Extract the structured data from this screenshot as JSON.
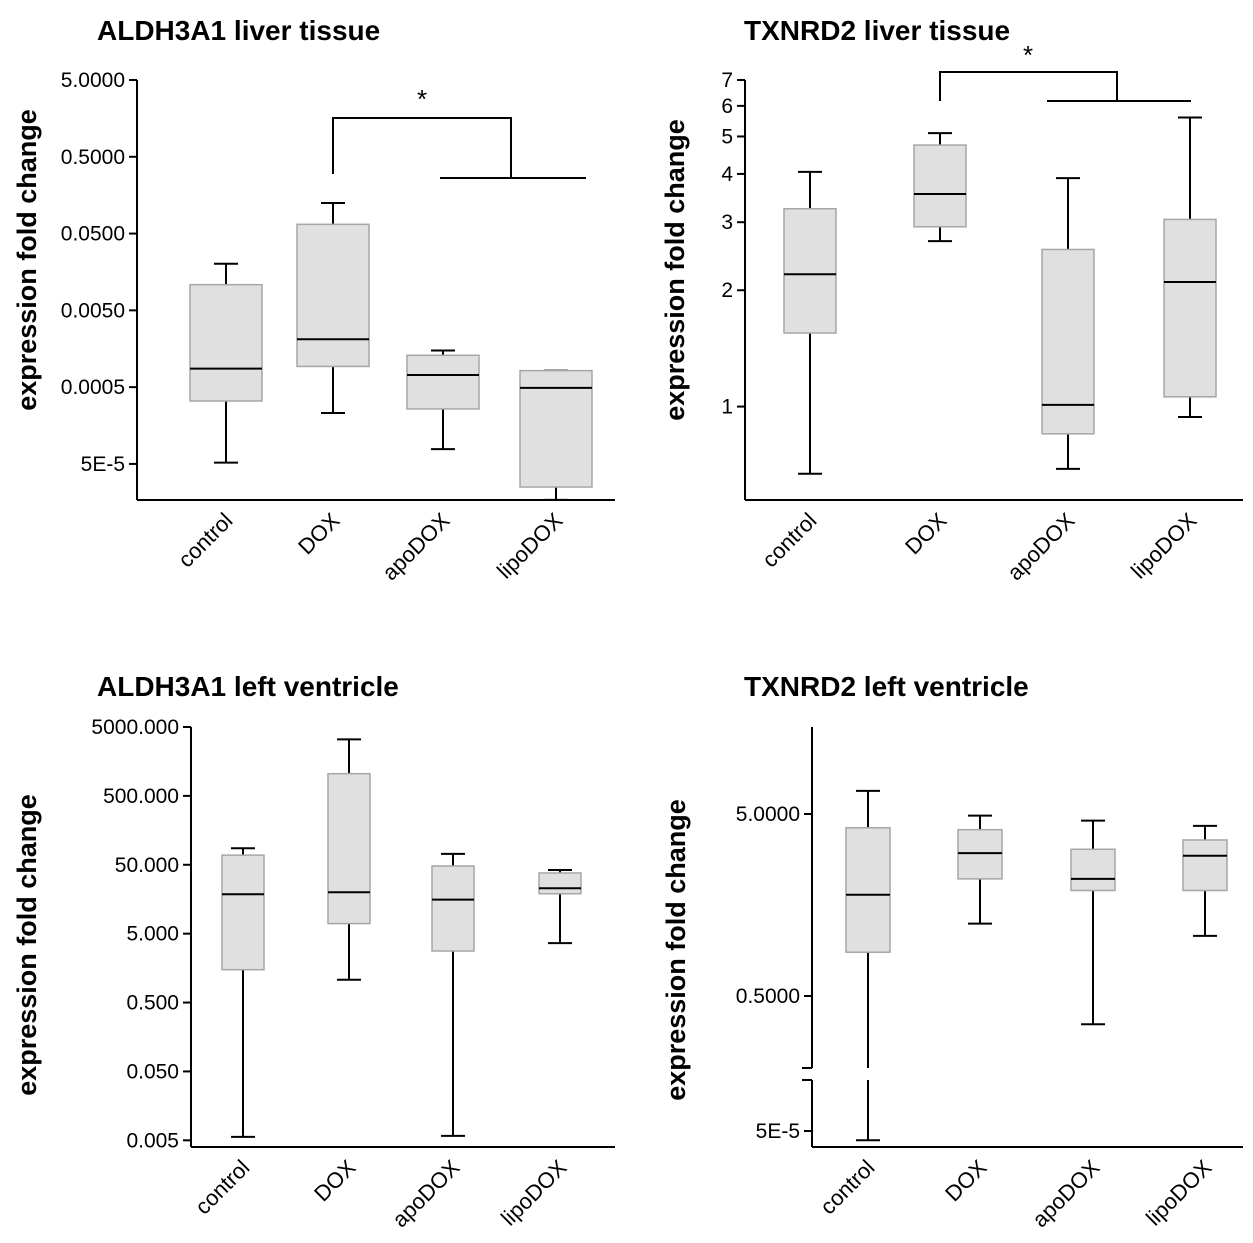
{
  "chart_data": [
    {
      "type": "box",
      "title": "ALDH3A1 liver tissue",
      "ylabel": "expression fold change",
      "yscale": "log",
      "ylim": [
        1.8e-05,
        5.0
      ],
      "yticks": [
        {
          "value": 5.0,
          "label": "5.0000"
        },
        {
          "value": 0.5,
          "label": "0.5000"
        },
        {
          "value": 0.05,
          "label": "0.0500"
        },
        {
          "value": 0.005,
          "label": "0.0050"
        },
        {
          "value": 0.0005,
          "label": "0.0005"
        },
        {
          "value": 5e-05,
          "label": "5E-5"
        }
      ],
      "categories": [
        "control",
        "DOX",
        "apoDOX",
        "lipoDOX"
      ],
      "boxes": [
        {
          "whisker_low": 5.2e-05,
          "q1": 0.00033,
          "median": 0.00087,
          "q3": 0.0108,
          "whisker_high": 0.0202
        },
        {
          "whisker_low": 0.00023,
          "q1": 0.00093,
          "median": 0.0021,
          "q3": 0.066,
          "whisker_high": 0.125
        },
        {
          "whisker_low": 7.8e-05,
          "q1": 0.00026,
          "median": 0.00072,
          "q3": 0.0013,
          "whisker_high": 0.0015
        },
        {
          "whisker_low": 1.7e-05,
          "q1": 2.5e-05,
          "median": 0.00049,
          "q3": 0.00082,
          "whisker_high": 0.00082
        }
      ],
      "significance": [
        {
          "label": "*",
          "from": "DOX",
          "to": [
            "apoDOX",
            "lipoDOX"
          ]
        }
      ]
    },
    {
      "type": "box",
      "title": "TXNRD2 liver tissue",
      "ylabel": "expression fold change",
      "yscale": "log",
      "ylim": [
        0.58,
        7.0
      ],
      "yticks": [
        {
          "value": 7,
          "label": "7"
        },
        {
          "value": 6,
          "label": "6"
        },
        {
          "value": 5,
          "label": "5"
        },
        {
          "value": 4,
          "label": "4"
        },
        {
          "value": 3,
          "label": "3"
        },
        {
          "value": 2,
          "label": "2"
        },
        {
          "value": 1,
          "label": "1"
        }
      ],
      "categories": [
        "control",
        "DOX",
        "apoDOX",
        "lipoDOX"
      ],
      "boxes": [
        {
          "whisker_low": 0.67,
          "q1": 1.55,
          "median": 2.2,
          "q3": 3.25,
          "whisker_high": 4.05
        },
        {
          "whisker_low": 2.68,
          "q1": 2.92,
          "median": 3.55,
          "q3": 4.75,
          "whisker_high": 5.1
        },
        {
          "whisker_low": 0.69,
          "q1": 0.85,
          "median": 1.01,
          "q3": 2.55,
          "whisker_high": 3.9
        },
        {
          "whisker_low": 0.94,
          "q1": 1.06,
          "median": 2.1,
          "q3": 3.05,
          "whisker_high": 5.6
        }
      ],
      "significance": [
        {
          "label": "*",
          "from": "DOX",
          "to": [
            "apoDOX",
            "lipoDOX"
          ]
        }
      ]
    },
    {
      "type": "box",
      "title": "ALDH3A1 left ventricle",
      "ylabel": "expression fold change",
      "yscale": "log",
      "ylim": [
        0.004,
        5000.0
      ],
      "yticks": [
        {
          "value": 5000,
          "label": "5000.000"
        },
        {
          "value": 500,
          "label": "500.000"
        },
        {
          "value": 50,
          "label": "50.000"
        },
        {
          "value": 5,
          "label": "5.000"
        },
        {
          "value": 0.5,
          "label": "0.500"
        },
        {
          "value": 0.05,
          "label": "0.050"
        },
        {
          "value": 0.005,
          "label": "0.005"
        }
      ],
      "categories": [
        "control",
        "DOX",
        "apoDOX",
        "lipoDOX"
      ],
      "boxes": [
        {
          "whisker_low": 0.0056,
          "q1": 1.5,
          "median": 18.7,
          "q3": 69.0,
          "whisker_high": 87.0
        },
        {
          "whisker_low": 1.07,
          "q1": 7.0,
          "median": 20.0,
          "q3": 1050.0,
          "whisker_high": 3300.0
        },
        {
          "whisker_low": 0.0058,
          "q1": 2.8,
          "median": 15.6,
          "q3": 48.0,
          "whisker_high": 72.0
        },
        {
          "whisker_low": 3.65,
          "q1": 19.0,
          "median": 22.8,
          "q3": 38.0,
          "whisker_high": 42.0
        }
      ],
      "significance": []
    },
    {
      "type": "box",
      "title": "TXNRD2 left ventricle",
      "ylabel": "expression fold change",
      "yscale": "log (broken axis)",
      "yticks": [
        {
          "value": 5.0,
          "label": "5.0000"
        },
        {
          "value": 0.5,
          "label": "0.5000"
        },
        {
          "value": 5e-05,
          "label": "5E-5"
        }
      ],
      "categories": [
        "control",
        "DOX",
        "apoDOX",
        "lipoDOX"
      ],
      "boxes": [
        {
          "whisker_low": 3.5e-05,
          "q1": 0.87,
          "median": 1.8,
          "q3": 4.2,
          "whisker_high": 6.7
        },
        {
          "whisker_low": 1.25,
          "q1": 2.2,
          "median": 3.05,
          "q3": 4.1,
          "whisker_high": 4.9
        },
        {
          "whisker_low": 0.35,
          "q1": 1.9,
          "median": 2.2,
          "q3": 3.2,
          "whisker_high": 4.6
        },
        {
          "whisker_low": 1.07,
          "q1": 1.9,
          "median": 2.95,
          "q3": 3.6,
          "whisker_high": 4.3
        }
      ],
      "significance": []
    }
  ]
}
